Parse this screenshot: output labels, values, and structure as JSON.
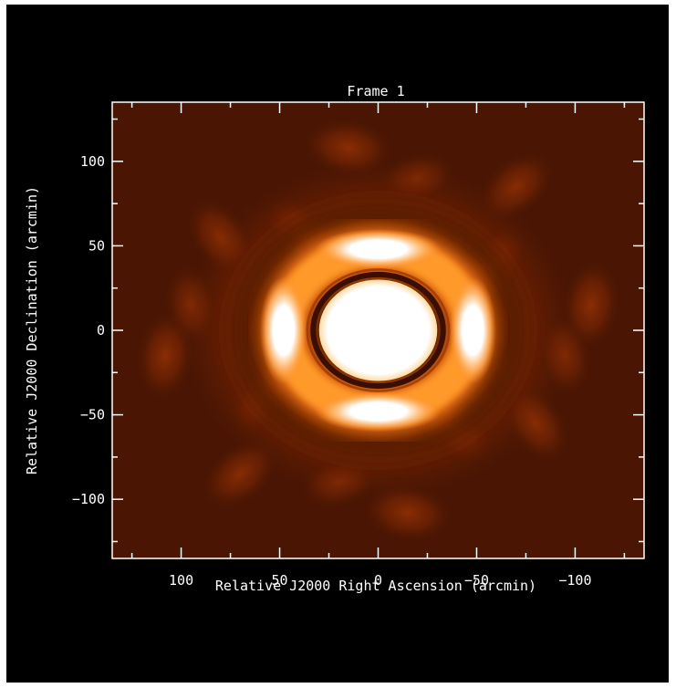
{
  "chart_data": {
    "type": "heatmap",
    "title": "Frame 1",
    "xlabel": "Relative J2000 Right Ascension (arcmin)",
    "ylabel": "Relative J2000 Declination (arcmin)",
    "xlim": [
      135,
      -135
    ],
    "ylim": [
      -135,
      135
    ],
    "x_ticks": [
      100,
      50,
      0,
      -50,
      -100
    ],
    "x_tick_labels": [
      "100",
      "50",
      "0",
      "−50",
      "−100"
    ],
    "y_ticks": [
      100,
      50,
      0,
      -50,
      -100
    ],
    "y_tick_labels": [
      "100",
      "50",
      "0",
      "−50",
      "−100"
    ],
    "colormap": [
      "#3a1304",
      "#5a1a02",
      "#8a2a02",
      "#c84a04",
      "#f08a1a",
      "#ffd090",
      "#ffffff"
    ],
    "background_color": "#000000",
    "features": {
      "core_radius": 30,
      "dark_ring_radius": 33,
      "bright_ring_radius": 47,
      "bright_lobes": [
        {
          "x": 0,
          "y": 48,
          "value": 1.0
        },
        {
          "x": 0,
          "y": -48,
          "value": 1.0
        },
        {
          "x": 48,
          "y": 0,
          "value": 1.0
        },
        {
          "x": -48,
          "y": 0,
          "value": 1.0
        }
      ],
      "sidelobes": [
        {
          "x": 15,
          "y": 108,
          "value": 0.5
        },
        {
          "x": -15,
          "y": -108,
          "value": 0.5
        },
        {
          "x": 108,
          "y": -15,
          "value": 0.5
        },
        {
          "x": -108,
          "y": 15,
          "value": 0.5
        },
        {
          "x": 38,
          "y": 58,
          "value": 0.55
        },
        {
          "x": -38,
          "y": -58,
          "value": 0.55
        },
        {
          "x": 58,
          "y": -38,
          "value": 0.55
        },
        {
          "x": -58,
          "y": 38,
          "value": 0.55
        },
        {
          "x": -70,
          "y": 85,
          "value": 0.45
        },
        {
          "x": 70,
          "y": -85,
          "value": 0.45
        },
        {
          "x": 80,
          "y": 55,
          "value": 0.45
        },
        {
          "x": -80,
          "y": -55,
          "value": 0.45
        },
        {
          "x": 95,
          "y": 15,
          "value": 0.35
        },
        {
          "x": -95,
          "y": -15,
          "value": 0.35
        },
        {
          "x": 20,
          "y": -90,
          "value": 0.3
        },
        {
          "x": -20,
          "y": 90,
          "value": 0.3
        }
      ]
    }
  }
}
